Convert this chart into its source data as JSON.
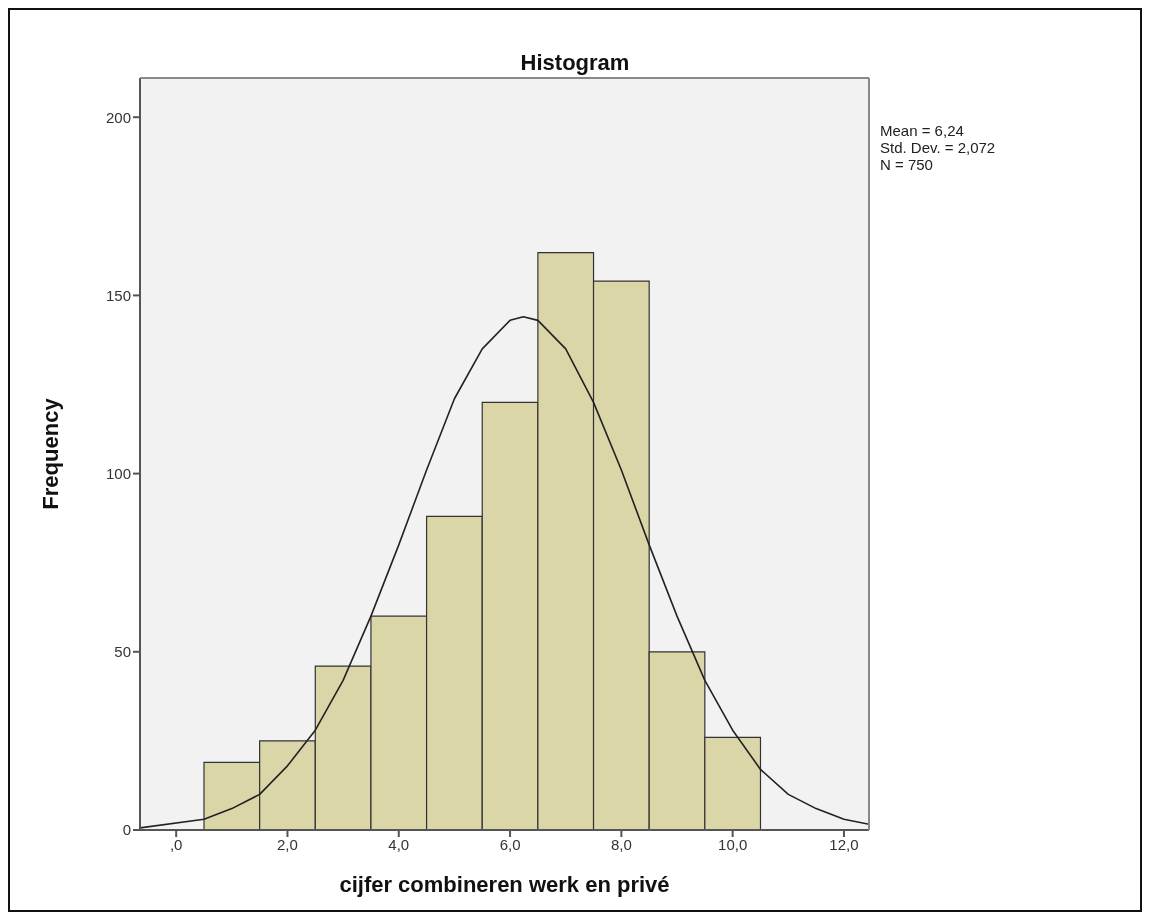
{
  "chart_data": {
    "type": "histogram",
    "title": "Histogram",
    "xlabel": "cijfer combineren werk en privé",
    "ylabel": "Frequency",
    "annotations": [
      "Mean = 6,24",
      "Std. Dev. = 2,072",
      "N = 750"
    ],
    "bins": [
      0.5,
      1.5,
      2.5,
      3.5,
      4.5,
      5.5,
      6.5,
      7.5,
      8.5,
      9.5,
      10.5
    ],
    "values": [
      19,
      25,
      46,
      60,
      88,
      120,
      162,
      154,
      50,
      26
    ],
    "color": "#dad6a8",
    "series": [
      {
        "type": "line",
        "color": "#222222",
        "x": [
          -0.65,
          0.5,
          1.0,
          1.5,
          2.0,
          2.5,
          3.0,
          3.5,
          4.0,
          4.5,
          5.0,
          5.5,
          6.0,
          6.24,
          6.5,
          7.0,
          7.5,
          8.0,
          8.5,
          9.0,
          9.5,
          10.0,
          10.5,
          11.0,
          11.5,
          12.0,
          12.45
        ],
        "values": [
          0.6,
          3,
          6,
          10,
          18,
          28,
          42,
          60,
          80,
          101,
          121,
          135,
          143,
          144,
          143,
          135,
          120,
          101,
          80,
          60,
          42,
          28,
          17,
          10,
          6,
          3,
          1.6
        ]
      }
    ],
    "marker": "none",
    "line_style": "solid",
    "grid": false,
    "xlim": [
      -0.65,
      12.45
    ],
    "xticks": [
      {
        "value": 0,
        "label": ",0"
      },
      {
        "value": 2,
        "label": "2,0"
      },
      {
        "value": 4,
        "label": "4,0"
      },
      {
        "value": 6,
        "label": "6,0"
      },
      {
        "value": 8,
        "label": "8,0"
      },
      {
        "value": 10,
        "label": "10,0"
      },
      {
        "value": 12,
        "label": "12,0"
      }
    ],
    "ylim": [
      0,
      211
    ],
    "yticks": [
      0,
      50,
      100,
      150,
      200
    ]
  }
}
